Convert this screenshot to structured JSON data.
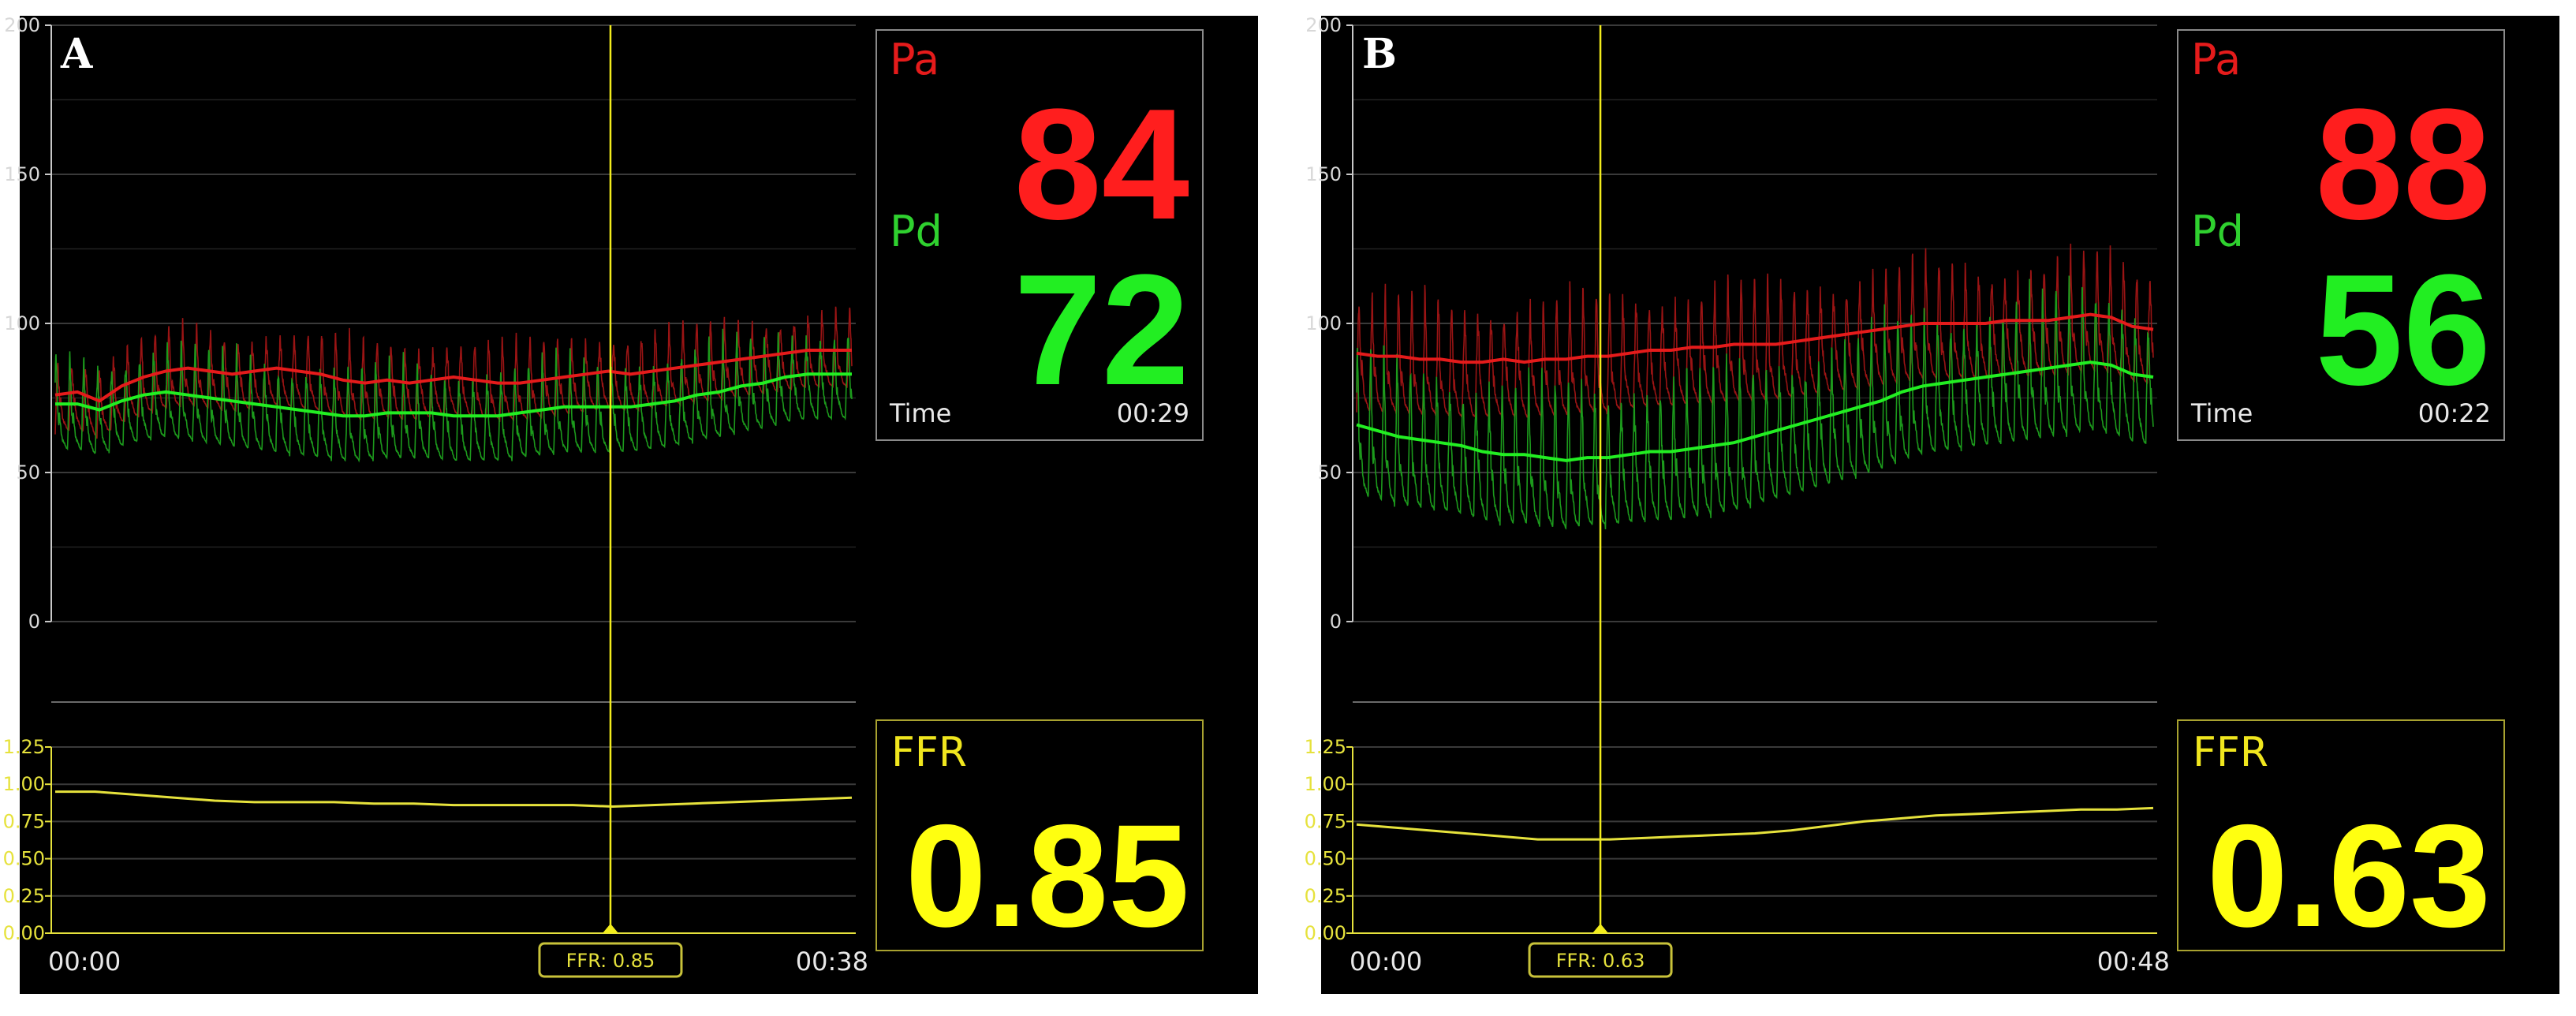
{
  "chart_data": [
    {
      "type": "line",
      "panel_label": "A",
      "pressure_chart": {
        "ylim": [
          0,
          200
        ],
        "yticks": [
          "0",
          "50",
          "100",
          "150",
          "200"
        ],
        "series": [
          {
            "name": "Pa",
            "color": "#e51b1b",
            "mean": [
              76,
              77,
              74,
              79,
              82,
              84,
              85,
              84,
              83,
              84,
              85,
              84,
              83,
              81,
              80,
              81,
              80,
              81,
              82,
              81,
              80,
              80,
              81,
              82,
              83,
              84,
              83,
              84,
              85,
              86,
              87,
              88,
              89,
              90,
              91,
              91,
              91
            ],
            "pulse_min": 64,
            "pulse_max": 112
          },
          {
            "name": "Pd",
            "color": "#22ee22",
            "mean": [
              73,
              73,
              71,
              74,
              76,
              77,
              76,
              75,
              74,
              73,
              72,
              71,
              70,
              69,
              69,
              70,
              70,
              70,
              69,
              69,
              69,
              70,
              71,
              72,
              72,
              72,
              72,
              73,
              74,
              76,
              77,
              79,
              80,
              82,
              83,
              83,
              83
            ],
            "pulse_min": 60,
            "pulse_max": 118
          }
        ]
      },
      "ffr_chart": {
        "ylim": [
          0,
          1.25
        ],
        "yticks": [
          "0.00",
          "0.25",
          "0.50",
          "0.75",
          "1.00",
          "1.25"
        ],
        "values": [
          0.95,
          0.95,
          0.93,
          0.91,
          0.89,
          0.88,
          0.88,
          0.88,
          0.87,
          0.87,
          0.86,
          0.86,
          0.86,
          0.86,
          0.85,
          0.86,
          0.87,
          0.88,
          0.89,
          0.9,
          0.91
        ],
        "color": "#e6e23c"
      },
      "x_start_label": "00:00",
      "x_end_label": "00:38",
      "cursor_fraction": 0.697,
      "cursor_label": "FFR: 0.85",
      "readout": {
        "pa_label": "Pa",
        "pa_value": "84",
        "pd_label": "Pd",
        "pd_value": "72",
        "time_label": "Time",
        "time_value": "00:29",
        "ffr_label": "FFR",
        "ffr_value": "0.85"
      }
    },
    {
      "type": "line",
      "panel_label": "B",
      "pressure_chart": {
        "ylim": [
          0,
          200
        ],
        "yticks": [
          "0",
          "50",
          "100",
          "150",
          "200"
        ],
        "series": [
          {
            "name": "Pa",
            "color": "#e51b1b",
            "mean": [
              90,
              89,
              89,
              88,
              88,
              87,
              87,
              88,
              87,
              88,
              88,
              89,
              89,
              90,
              91,
              91,
              92,
              92,
              93,
              93,
              93,
              94,
              95,
              96,
              97,
              98,
              99,
              100,
              100,
              100,
              100,
              101,
              101,
              101,
              102,
              103,
              102,
              99,
              98
            ],
            "pulse_min": 62,
            "pulse_max": 134
          },
          {
            "name": "Pd",
            "color": "#22ee22",
            "mean": [
              66,
              64,
              62,
              61,
              60,
              59,
              57,
              56,
              56,
              55,
              54,
              55,
              55,
              56,
              57,
              57,
              58,
              59,
              60,
              62,
              64,
              66,
              68,
              70,
              72,
              74,
              77,
              79,
              80,
              81,
              82,
              83,
              84,
              85,
              86,
              87,
              86,
              83,
              82
            ],
            "pulse_min": 34,
            "pulse_max": 122
          }
        ]
      },
      "ffr_chart": {
        "ylim": [
          0,
          1.25
        ],
        "yticks": [
          "0.00",
          "0.25",
          "0.50",
          "0.75",
          "1.00",
          "1.25"
        ],
        "values": [
          0.73,
          0.71,
          0.69,
          0.67,
          0.65,
          0.63,
          0.63,
          0.63,
          0.64,
          0.65,
          0.66,
          0.67,
          0.69,
          0.72,
          0.75,
          0.77,
          0.79,
          0.8,
          0.81,
          0.82,
          0.83,
          0.83,
          0.84
        ],
        "color": "#e6e23c"
      },
      "x_start_label": "00:00",
      "x_end_label": "00:48",
      "cursor_fraction": 0.306,
      "cursor_label": "FFR: 0.63",
      "readout": {
        "pa_label": "Pa",
        "pa_value": "88",
        "pd_label": "Pd",
        "pd_value": "56",
        "time_label": "Time",
        "time_value": "00:22",
        "ffr_label": "FFR",
        "ffr_value": "0.63"
      }
    }
  ]
}
